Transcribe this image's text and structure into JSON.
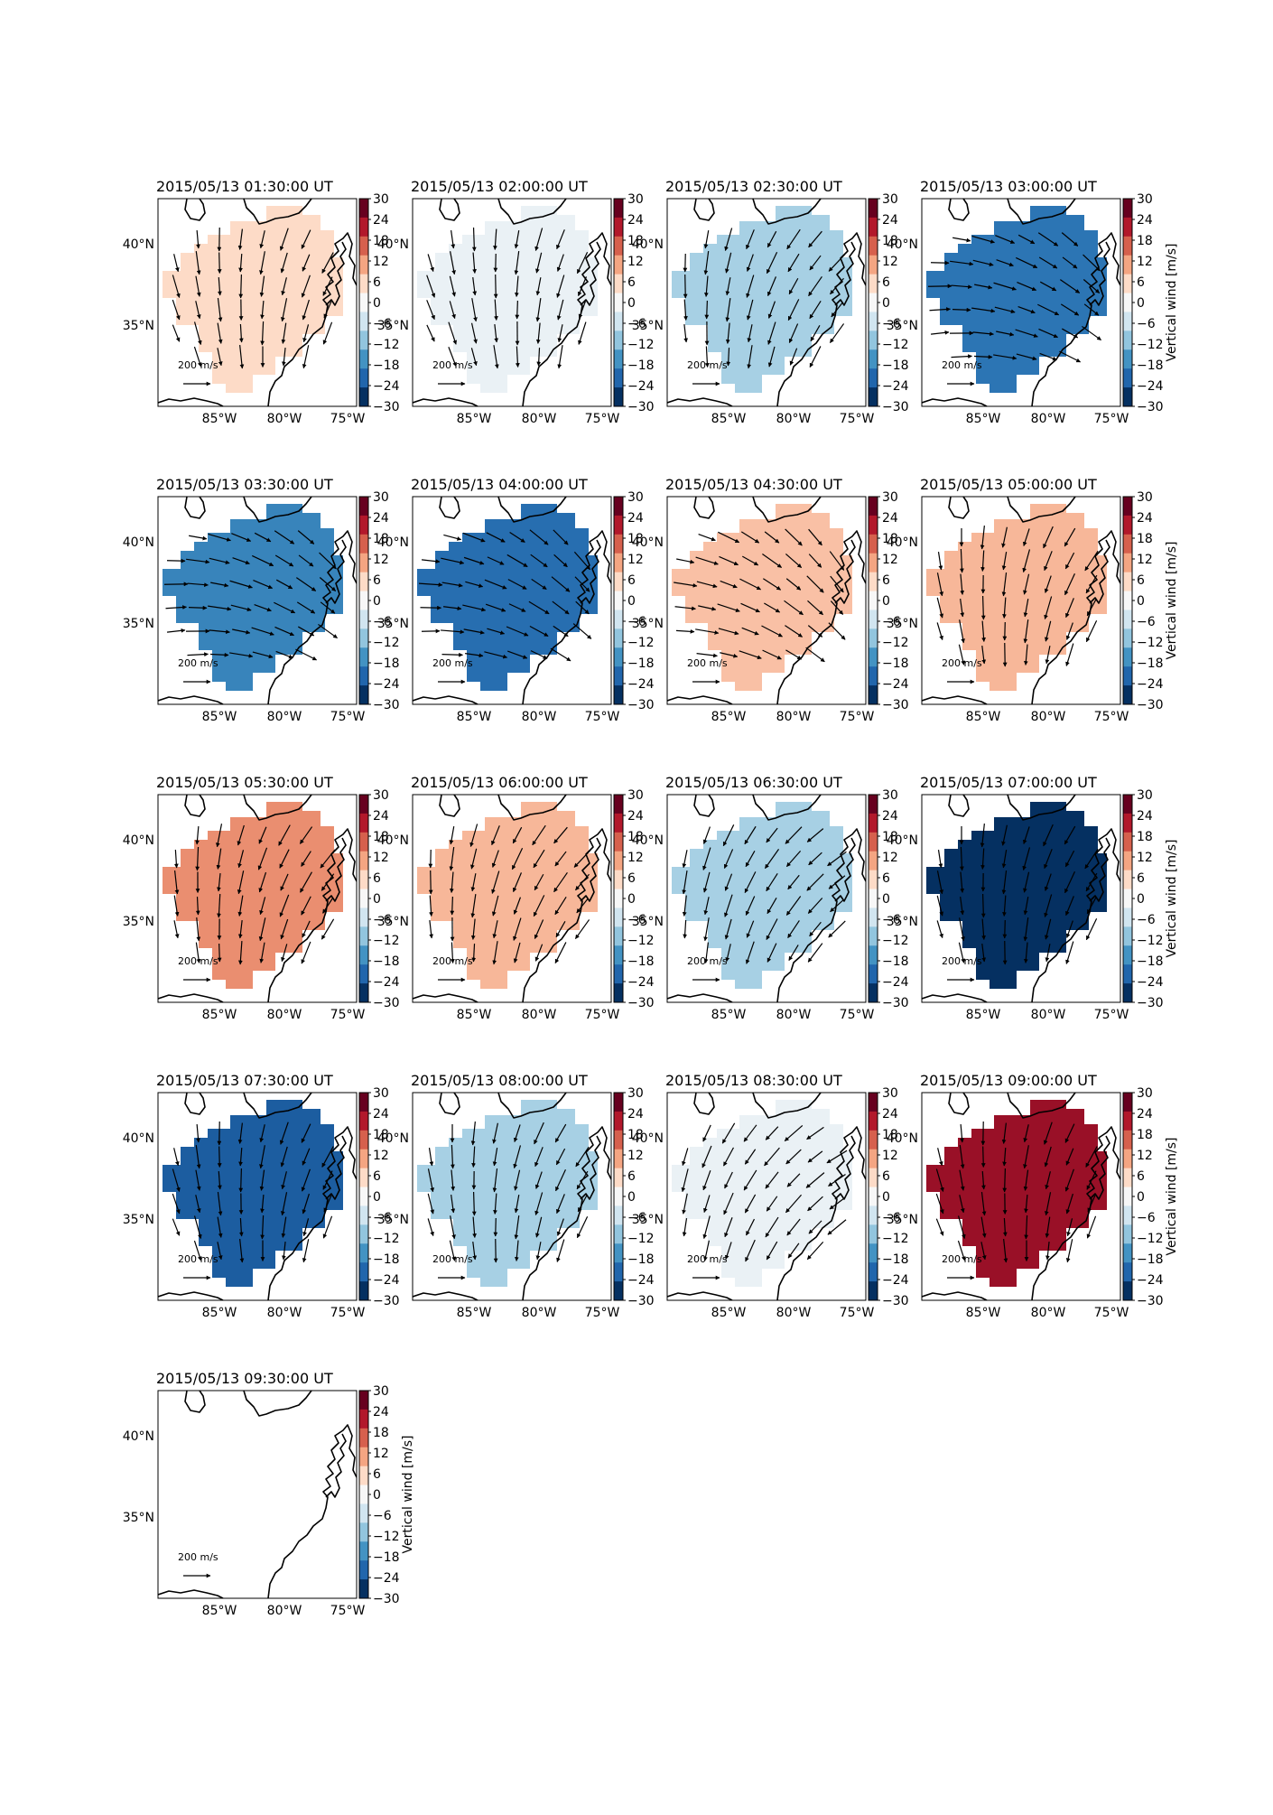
{
  "colorbar": {
    "label": "Vertical wind [m/s]",
    "ticks": [
      "30",
      "24",
      "18",
      "12",
      "6",
      "0",
      "−6",
      "−12",
      "−18",
      "−24",
      "−30"
    ],
    "vmin": -30,
    "vmax": 30,
    "cmap": [
      "#67001f",
      "#b2182b",
      "#d6604d",
      "#f4a582",
      "#fddbc7",
      "#f7f7f7",
      "#d1e5f0",
      "#92c5de",
      "#4393c3",
      "#2166ac",
      "#053061"
    ]
  },
  "axes": {
    "lon_labels": [
      "85°W",
      "80°W",
      "75°W"
    ],
    "lat_labels": [
      "40°N",
      "35°N"
    ],
    "inset_lat_labels": [
      "40°N",
      "35°N"
    ]
  },
  "reference_arrow": {
    "label": "200 m/s",
    "value_mps": 200
  },
  "chart_data": [
    {
      "type": "heatmap",
      "title": "2015/05/13 01:30:00 UT",
      "value_mps": 6,
      "mean_wind_direction_deg": 185
    },
    {
      "type": "heatmap",
      "title": "2015/05/13 02:00:00 UT",
      "value_mps": -2,
      "mean_wind_direction_deg": 182
    },
    {
      "type": "heatmap",
      "title": "2015/05/13 02:30:00 UT",
      "value_mps": -10,
      "mean_wind_direction_deg": 200
    },
    {
      "type": "heatmap",
      "title": "2015/05/13 03:00:00 UT",
      "value_mps": -22,
      "mean_wind_direction_deg": 110
    },
    {
      "type": "heatmap",
      "title": "2015/05/13 03:30:00 UT",
      "value_mps": -20,
      "mean_wind_direction_deg": 110
    },
    {
      "type": "heatmap",
      "title": "2015/05/13 04:00:00 UT",
      "value_mps": -23,
      "mean_wind_direction_deg": 115
    },
    {
      "type": "heatmap",
      "title": "2015/05/13 04:30:00 UT",
      "value_mps": 9,
      "mean_wind_direction_deg": 120
    },
    {
      "type": "heatmap",
      "title": "2015/05/13 05:00:00 UT",
      "value_mps": 10,
      "mean_wind_direction_deg": 190
    },
    {
      "type": "heatmap",
      "title": "2015/05/13 05:30:00 UT",
      "value_mps": 14,
      "mean_wind_direction_deg": 195
    },
    {
      "type": "heatmap",
      "title": "2015/05/13 06:00:00 UT",
      "value_mps": 10,
      "mean_wind_direction_deg": 200
    },
    {
      "type": "heatmap",
      "title": "2015/05/13 06:30:00 UT",
      "value_mps": -10,
      "mean_wind_direction_deg": 210
    },
    {
      "type": "heatmap",
      "title": "2015/05/13 07:00:00 UT",
      "value_mps": -30,
      "mean_wind_direction_deg": 190
    },
    {
      "type": "heatmap",
      "title": "2015/05/13 07:30:00 UT",
      "value_mps": -25,
      "mean_wind_direction_deg": 185
    },
    {
      "type": "heatmap",
      "title": "2015/05/13 08:00:00 UT",
      "value_mps": -10,
      "mean_wind_direction_deg": 190
    },
    {
      "type": "heatmap",
      "title": "2015/05/13 08:30:00 UT",
      "value_mps": -2,
      "mean_wind_direction_deg": 215
    },
    {
      "type": "heatmap",
      "title": "2015/05/13 09:00:00 UT",
      "value_mps": 26,
      "mean_wind_direction_deg": 185
    },
    {
      "type": "heatmap",
      "title": "2015/05/13 09:30:00 UT",
      "value_mps": null,
      "mean_wind_direction_deg": null
    }
  ]
}
